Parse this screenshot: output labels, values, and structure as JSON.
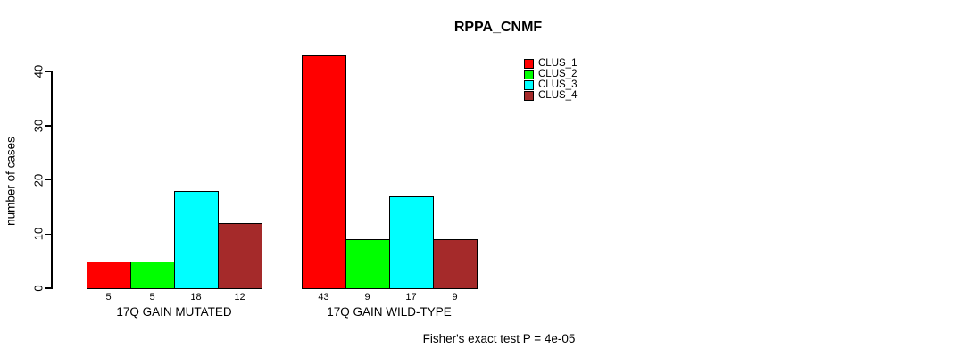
{
  "title": "RPPA_CNMF",
  "chart_data": {
    "type": "bar",
    "title": "RPPA_CNMF",
    "xlabel": "",
    "ylabel": "number of cases",
    "ylim": [
      0,
      43
    ],
    "yticks": [
      0,
      10,
      20,
      30,
      40
    ],
    "grid": false,
    "legend_position": "top-right",
    "categories": [
      "17Q GAIN MUTATED",
      "17Q GAIN WILD-TYPE"
    ],
    "series": [
      {
        "name": "CLUS_1",
        "color": "#FF0000",
        "values": [
          5,
          43
        ]
      },
      {
        "name": "CLUS_2",
        "color": "#00FF00",
        "values": [
          5,
          9
        ]
      },
      {
        "name": "CLUS_3",
        "color": "#00FFFF",
        "values": [
          18,
          17
        ]
      },
      {
        "name": "CLUS_4",
        "color": "#A52A2A",
        "values": [
          12,
          9
        ]
      }
    ],
    "bar_value_labels": [
      [
        5,
        5,
        18,
        12
      ],
      [
        43,
        9,
        17,
        9
      ]
    ],
    "annotation": "Fisher's exact test P = 4e-05"
  },
  "colors": {
    "background": "#FFFFFF",
    "axis": "#000000",
    "bar_border": "#000000",
    "text": "#000000"
  }
}
